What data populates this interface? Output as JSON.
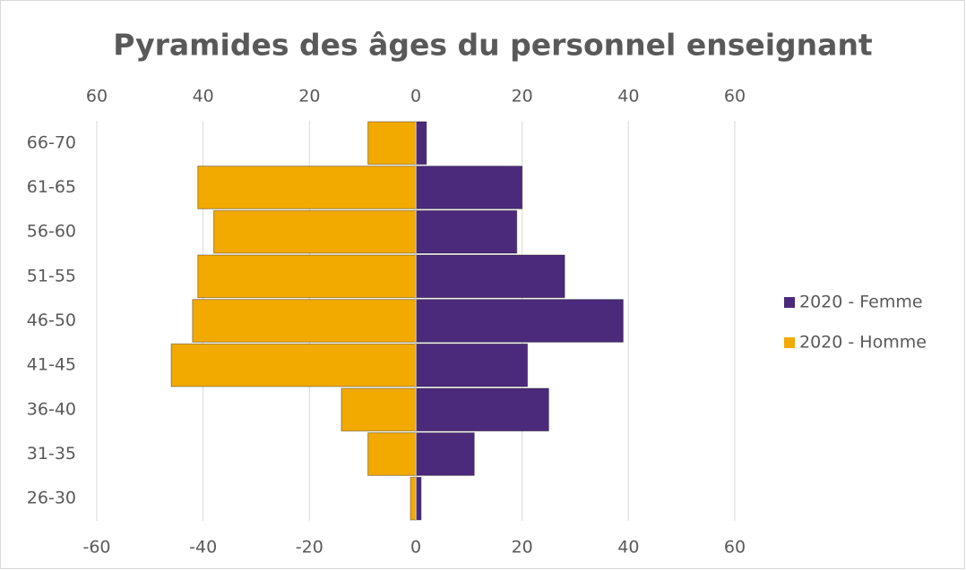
{
  "chart_data": {
    "type": "pyramid",
    "title": "Pyramides des âges du personnel enseignant",
    "categories": [
      "26-30",
      "31-35",
      "36-40",
      "41-45",
      "46-50",
      "51-55",
      "56-60",
      "61-65",
      "66-70"
    ],
    "series": [
      {
        "name": "2020 - Femme",
        "color": "#4b2a7b",
        "values": [
          1,
          11,
          25,
          21,
          39,
          28,
          19,
          20,
          2
        ]
      },
      {
        "name": "2020 - Homme",
        "color": "#f2a900",
        "values": [
          -1,
          -9,
          -14,
          -46,
          -42,
          -41,
          -38,
          -41,
          -9
        ]
      }
    ],
    "xlim": [
      -60,
      60
    ],
    "xticks": [
      -60,
      -40,
      -20,
      0,
      20,
      40,
      60
    ],
    "x2ticks": [
      {
        "value": -60,
        "label": "60"
      },
      {
        "value": -40,
        "label": "40"
      },
      {
        "value": -20,
        "label": "20"
      },
      0,
      20,
      40,
      60
    ],
    "grid": true,
    "legend": "right"
  }
}
